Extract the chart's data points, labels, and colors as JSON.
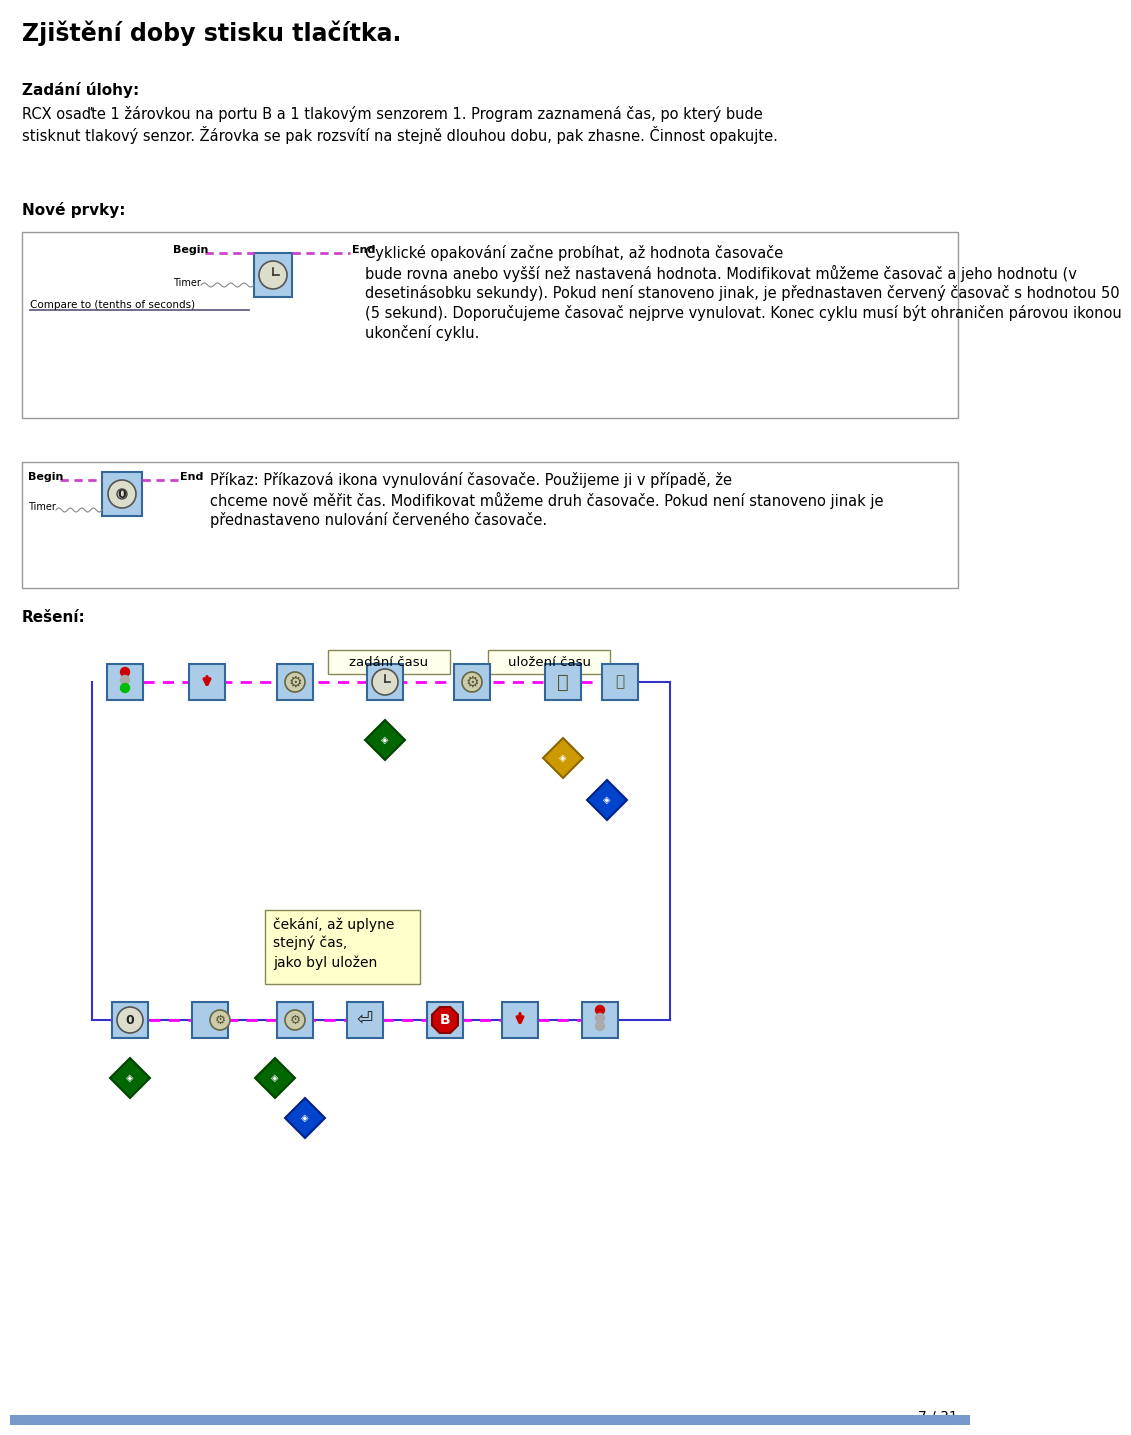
{
  "title": "Zjištění doby stisku tlačítka.",
  "section1_label": "Zadání úlohy:",
  "section1_line1": "RCX osaďte 1 žárovkou na portu B a 1 tlakovým senzorem 1. Program zaznamená čas, po který bude",
  "section1_line2": "stisknut tlakový senzor. Žárovka se pak rozsvítí na stejně dlouhou dobu, pak zhasne. Činnost opakujte.",
  "section2_label": "Nové prvky:",
  "box1_line1": "Cyklické opakování začne probíhat, až hodnota časovače",
  "box1_line2": "bude rovna anebo vyšší než nastavená hodnota. Modifikovat můžeme časovač a jeho hodnotu (v",
  "box1_line3": "desetinásobku sekundy). Pokud není stanoveno jinak, je přednastaven červený časovač s hodnotou 50",
  "box1_line4": "(5 sekund). Doporučujeme časovač nejprve vynulovat. Konec cyklu musí být ohraničen párovou ikonou",
  "box1_line5": "ukončení cyklu.",
  "box2_line1": "Příkaz: Příkazová ikona vynulování časovače. Použijeme ji v případě, že",
  "box2_line2": "chceme nově měřit čas. Modifikovat můžeme druh časovače. Pokud není stanoveno jinak je",
  "box2_line3": "přednastaveno nulování červeného časovače.",
  "begin_label": "Begin",
  "end_label": "End",
  "timer_label": "Timer",
  "compare_label": "Compare to (tenths of seconds)",
  "reseni_label": "Rešení:",
  "note_text_line1": "čekání, až uplyne",
  "note_text_line2": "stejný čas,",
  "note_text_line3": "jako byl uložen",
  "label_zadani": "zadání času",
  "label_ulozeni": "uložení času",
  "page_label": "7 / 31",
  "bg_color": "#ffffff",
  "box_border_color": "#999999",
  "magenta": "#ff00ff",
  "blue_box": "#aacce8",
  "blue_border": "#336699",
  "yellow_note": "#ffffcc"
}
